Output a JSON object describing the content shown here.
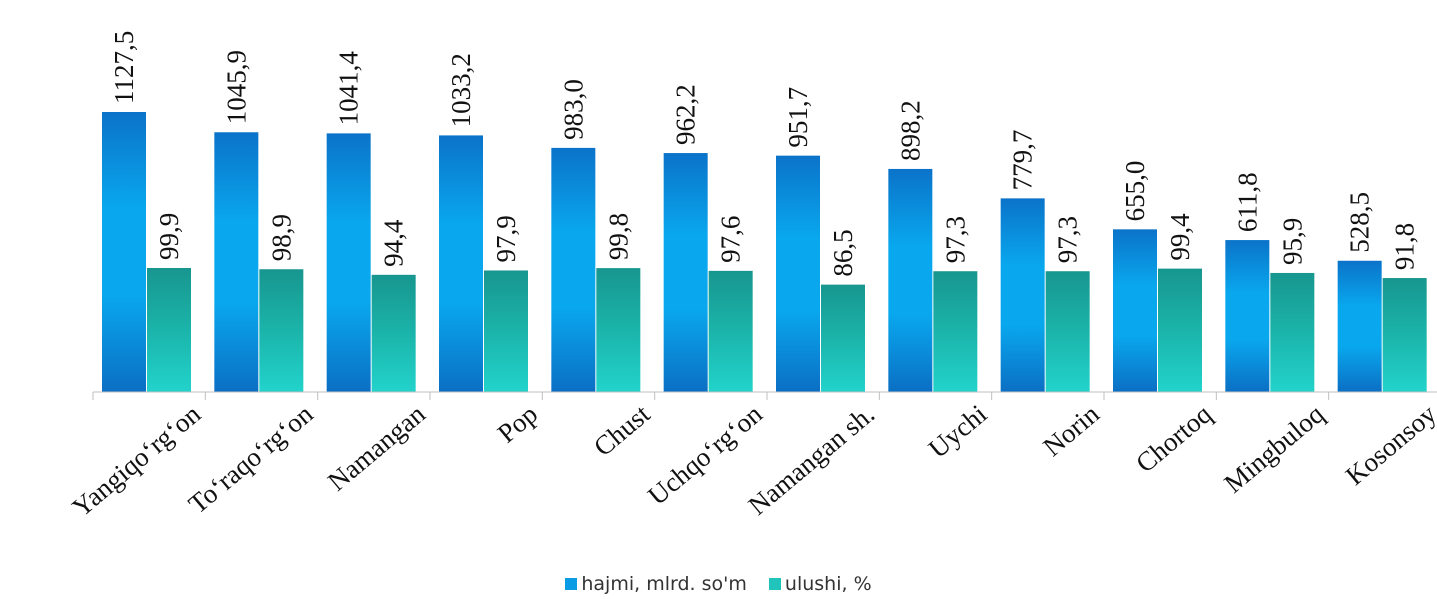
{
  "chart_data": {
    "type": "bar",
    "categories": [
      "Yangiqo‘rg‘on",
      "To‘raqo‘rg‘on",
      "Namangan",
      "Pop",
      "Chust",
      "Uchqo‘rg‘on",
      "Namangan sh.",
      "Uychi",
      "Norin",
      "Chortoq",
      "Mingbuloq",
      "Kosonsoy"
    ],
    "series": [
      {
        "name": "hajmi, mlrd. so'm",
        "values": [
          1127.5,
          1045.9,
          1041.4,
          1033.2,
          983.0,
          962.2,
          951.7,
          898.2,
          779.7,
          655.0,
          611.8,
          528.5
        ],
        "labels": [
          "1127,5",
          "1045,9",
          "1041,4",
          "1033,2",
          "983,0",
          "962,2",
          "951,7",
          "898,2",
          "779,7",
          "655,0",
          "611,8",
          "528,5"
        ],
        "color": "#0a9be6"
      },
      {
        "name": "ulushi, %",
        "values": [
          99.9,
          98.9,
          94.4,
          97.9,
          99.8,
          97.6,
          86.5,
          97.3,
          97.3,
          99.4,
          95.9,
          91.8
        ],
        "labels": [
          "99,9",
          "98,9",
          "94,4",
          "97,9",
          "99,8",
          "97,6",
          "86,5",
          "97,3",
          "97,3",
          "99,4",
          "95,9",
          "91,8"
        ],
        "color": "#20b5a8"
      }
    ],
    "legend_position": "bottom",
    "grid": false
  }
}
